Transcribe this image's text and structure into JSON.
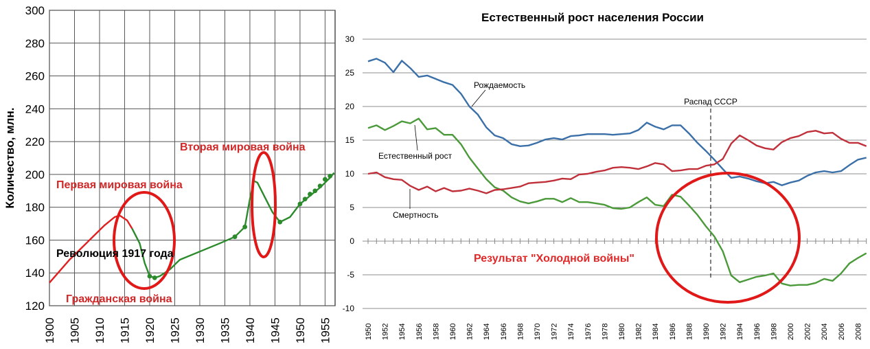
{
  "chart_data": [
    {
      "type": "line",
      "ylabel": "Количество, млн.",
      "xlim": [
        1900,
        1957
      ],
      "ylim": [
        120,
        300
      ],
      "x_ticks": [
        "1900",
        "1905",
        "1910",
        "1915",
        "1920",
        "1925",
        "1930",
        "1935",
        "1940",
        "1945",
        "1950",
        "1955"
      ],
      "y_ticks": [
        "120",
        "140",
        "160",
        "180",
        "200",
        "220",
        "240",
        "260",
        "280",
        "300"
      ],
      "grid": true,
      "series": [
        {
          "color": "#e02020",
          "x": [
            1900,
            1904,
            1908,
            1911,
            1913,
            1914,
            1915.5,
            1916.5
          ],
          "y": [
            134,
            148,
            160,
            169,
            174,
            175,
            172,
            167
          ]
        },
        {
          "color": "#2b8a2b",
          "x": [
            1916.5,
            1918,
            1919,
            1920,
            1921,
            1922,
            1924,
            1926,
            1930,
            1934,
            1937,
            1939,
            1940,
            1940.8,
            1941.5,
            1943,
            1944.5,
            1946,
            1948,
            1950,
            1952,
            1954,
            1956,
            1956.8
          ],
          "y": [
            167,
            158,
            146,
            138,
            137,
            138,
            142,
            148,
            153,
            158,
            162,
            168,
            185,
            196,
            195,
            186,
            177,
            171,
            174,
            182,
            187,
            192,
            198,
            201
          ],
          "markers_x": [
            1920,
            1921,
            1937,
            1939,
            1946,
            1950,
            1951,
            1952,
            1953,
            1954,
            1955,
            1956
          ],
          "markers_y": [
            138,
            137,
            162,
            168,
            171,
            182,
            185,
            188,
            190,
            193,
            197,
            199
          ]
        }
      ],
      "annotations": [
        {
          "text": "Вторая мировая война",
          "color": "#d02828"
        },
        {
          "text": "Первая мировая война",
          "color": "#d02828"
        },
        {
          "text": "Революция 1917 года",
          "color": "#000000"
        },
        {
          "text": "Гражданская война",
          "color": "#d02828"
        }
      ]
    },
    {
      "type": "line",
      "title": "Естественный рост населения России",
      "ylim": [
        -10,
        30
      ],
      "y_ticks": [
        "30",
        "25",
        "20",
        "15",
        "10",
        "5",
        "0",
        "-5",
        "-10"
      ],
      "x_tick_labels": [
        "1950",
        "1952",
        "1954",
        "1956",
        "1958",
        "1960",
        "1962",
        "1964",
        "1966",
        "1968",
        "1970",
        "1972",
        "1974",
        "1976",
        "1978",
        "1980",
        "1982",
        "1984",
        "1986",
        "1988",
        "1990",
        "1992",
        "1994",
        "1996",
        "1998",
        "2000",
        "2002",
        "2004",
        "2006",
        "2008"
      ],
      "years_from": 1950,
      "years_to": 2009,
      "series": [
        {
          "name": "Рождаемость",
          "color": "#3a6fa8",
          "values": [
            26.7,
            27.1,
            26.5,
            25.1,
            26.8,
            25.7,
            24.4,
            24.6,
            24.1,
            23.6,
            23.2,
            21.9,
            20.0,
            18.8,
            16.9,
            15.7,
            15.3,
            14.4,
            14.1,
            14.2,
            14.6,
            15.1,
            15.3,
            15.1,
            15.6,
            15.7,
            15.9,
            15.9,
            15.9,
            15.8,
            15.9,
            16.0,
            16.5,
            17.6,
            17.0,
            16.6,
            17.2,
            17.2,
            16.0,
            14.6,
            13.4,
            12.1,
            10.7,
            9.4,
            9.6,
            9.3,
            8.9,
            8.6,
            8.8,
            8.3,
            8.7,
            9.0,
            9.7,
            10.2,
            10.4,
            10.2,
            10.4,
            11.3,
            12.1,
            12.4
          ]
        },
        {
          "name": "Естественный рост",
          "color": "#4a9a3a",
          "values": [
            16.8,
            17.2,
            16.5,
            17.1,
            17.8,
            17.5,
            18.2,
            16.6,
            16.8,
            15.8,
            15.8,
            14.4,
            12.4,
            10.8,
            9.2,
            8.0,
            7.5,
            6.5,
            5.9,
            5.6,
            5.9,
            6.3,
            6.3,
            5.8,
            6.4,
            5.8,
            5.8,
            5.6,
            5.4,
            4.9,
            4.8,
            5.0,
            5.8,
            6.5,
            5.4,
            5.2,
            6.9,
            6.6,
            5.3,
            3.9,
            2.2,
            0.7,
            -1.5,
            -5.1,
            -6.1,
            -5.7,
            -5.3,
            -5.1,
            -4.8,
            -6.3,
            -6.6,
            -6.5,
            -6.5,
            -6.2,
            -5.6,
            -5.9,
            -4.8,
            -3.3,
            -2.5,
            -1.8
          ]
        },
        {
          "name": "Смертность",
          "color": "#c0303a",
          "values": [
            10.0,
            10.2,
            9.5,
            9.2,
            9.1,
            8.2,
            7.6,
            8.1,
            7.4,
            7.9,
            7.4,
            7.5,
            7.8,
            7.5,
            7.1,
            7.6,
            7.7,
            7.9,
            8.1,
            8.6,
            8.7,
            8.8,
            9.0,
            9.3,
            9.2,
            9.9,
            10.0,
            10.3,
            10.5,
            10.9,
            11.0,
            10.9,
            10.7,
            11.1,
            11.6,
            11.4,
            10.4,
            10.5,
            10.7,
            10.7,
            11.2,
            11.4,
            12.2,
            14.5,
            15.7,
            15.0,
            14.2,
            13.8,
            13.6,
            14.7,
            15.3,
            15.6,
            16.2,
            16.4,
            16.0,
            16.1,
            15.2,
            14.6,
            14.6,
            14.1
          ]
        }
      ],
      "annotations": [
        {
          "text": "Распад СССР",
          "year": 1991
        },
        {
          "text": "Результат \"Холодной войны\"",
          "color": "#e02828"
        }
      ]
    }
  ]
}
